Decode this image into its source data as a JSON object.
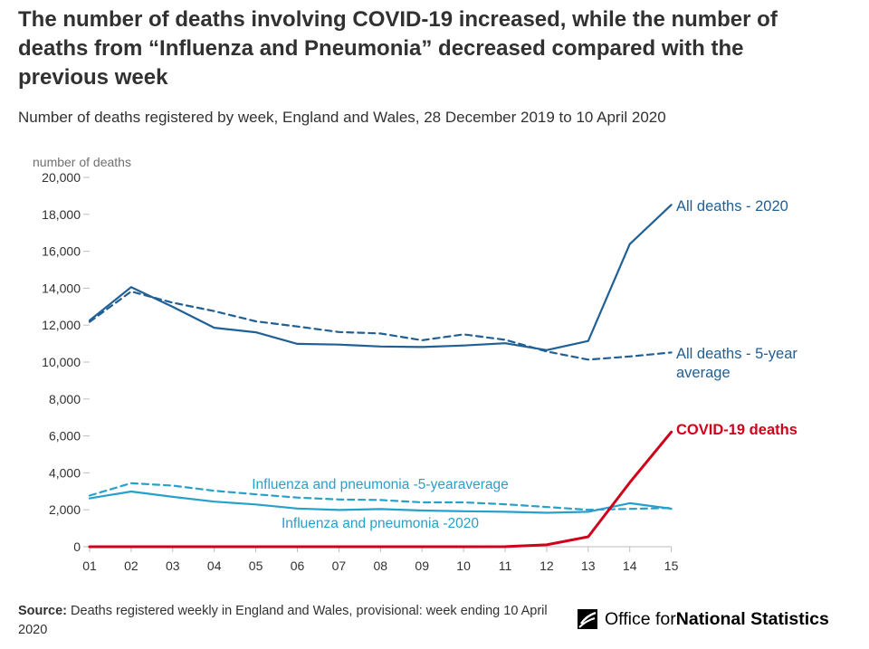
{
  "title": "The number of deaths involving COVID-19 increased, while the number of deaths from “Influenza and Pneumonia” decreased compared with the previous week",
  "subtitle": "Number of deaths registered by week, England and Wales, 28 December 2019 to 10 April 2020",
  "source": {
    "label": "Source:",
    "text": " Deaths registered weekly in England and Wales, provisional: week ending 10 April 2020"
  },
  "logo": {
    "icon": "ons-logo-icon",
    "text_regular": "Office for ",
    "text_bold": "National Statistics"
  },
  "chart_data": {
    "type": "line",
    "ylabel": "number of deaths",
    "xlabel": "",
    "ylim": [
      0,
      20000
    ],
    "yticks": [
      0,
      2000,
      4000,
      6000,
      8000,
      10000,
      12000,
      14000,
      16000,
      18000,
      20000
    ],
    "ytick_labels": [
      "0",
      "2,000",
      "4,000",
      "6,000",
      "8,000",
      "10,000",
      "12,000",
      "14,000",
      "16,000",
      "18,000",
      "20,000"
    ],
    "categories": [
      "01",
      "02",
      "03",
      "04",
      "05",
      "06",
      "07",
      "08",
      "09",
      "10",
      "11",
      "12",
      "13",
      "14",
      "15"
    ],
    "grid": false,
    "series": [
      {
        "name": "All deaths - 2020",
        "color": "#206095",
        "style": "solid",
        "values": [
          12254,
          14058,
          12990,
          11856,
          11612,
          10986,
          10944,
          10841,
          10816,
          10895,
          11019,
          10645,
          11141,
          16387,
          18516
        ]
      },
      {
        "name": "All deaths - 5-year average",
        "color": "#206095",
        "style": "dashed",
        "values": [
          12175,
          13822,
          13216,
          12760,
          12206,
          11925,
          11627,
          11548,
          11183,
          11498,
          11205,
          10573,
          10130,
          10305,
          10520
        ]
      },
      {
        "name": "COVID-19 deaths",
        "color": "#d0021b",
        "style": "solid",
        "values": [
          0,
          0,
          0,
          0,
          0,
          0,
          0,
          0,
          0,
          0,
          5,
          103,
          539,
          3475,
          6213
        ]
      },
      {
        "name": "Influenza and pneumonia -5-yearaverage",
        "color": "#27a0cc",
        "style": "dashed",
        "values": [
          2770,
          3440,
          3310,
          3030,
          2840,
          2660,
          2560,
          2530,
          2400,
          2400,
          2300,
          2150,
          2000,
          2050,
          2100
        ]
      },
      {
        "name": "Influenza and pneumonia -2020",
        "color": "#27a0cc",
        "style": "solid",
        "values": [
          2620,
          2990,
          2700,
          2440,
          2290,
          2070,
          1990,
          2040,
          1960,
          1920,
          1890,
          1840,
          1890,
          2360,
          2060
        ]
      }
    ],
    "annotations": [
      {
        "text": "All deaths - 2020"
      },
      {
        "text": "All deaths - 5-year"
      },
      {
        "text": "average"
      },
      {
        "text": "COVID-19 deaths"
      },
      {
        "text": "Influenza and pneumonia -5-yearaverage"
      },
      {
        "text": "Influenza and pneumonia -2020"
      }
    ]
  }
}
